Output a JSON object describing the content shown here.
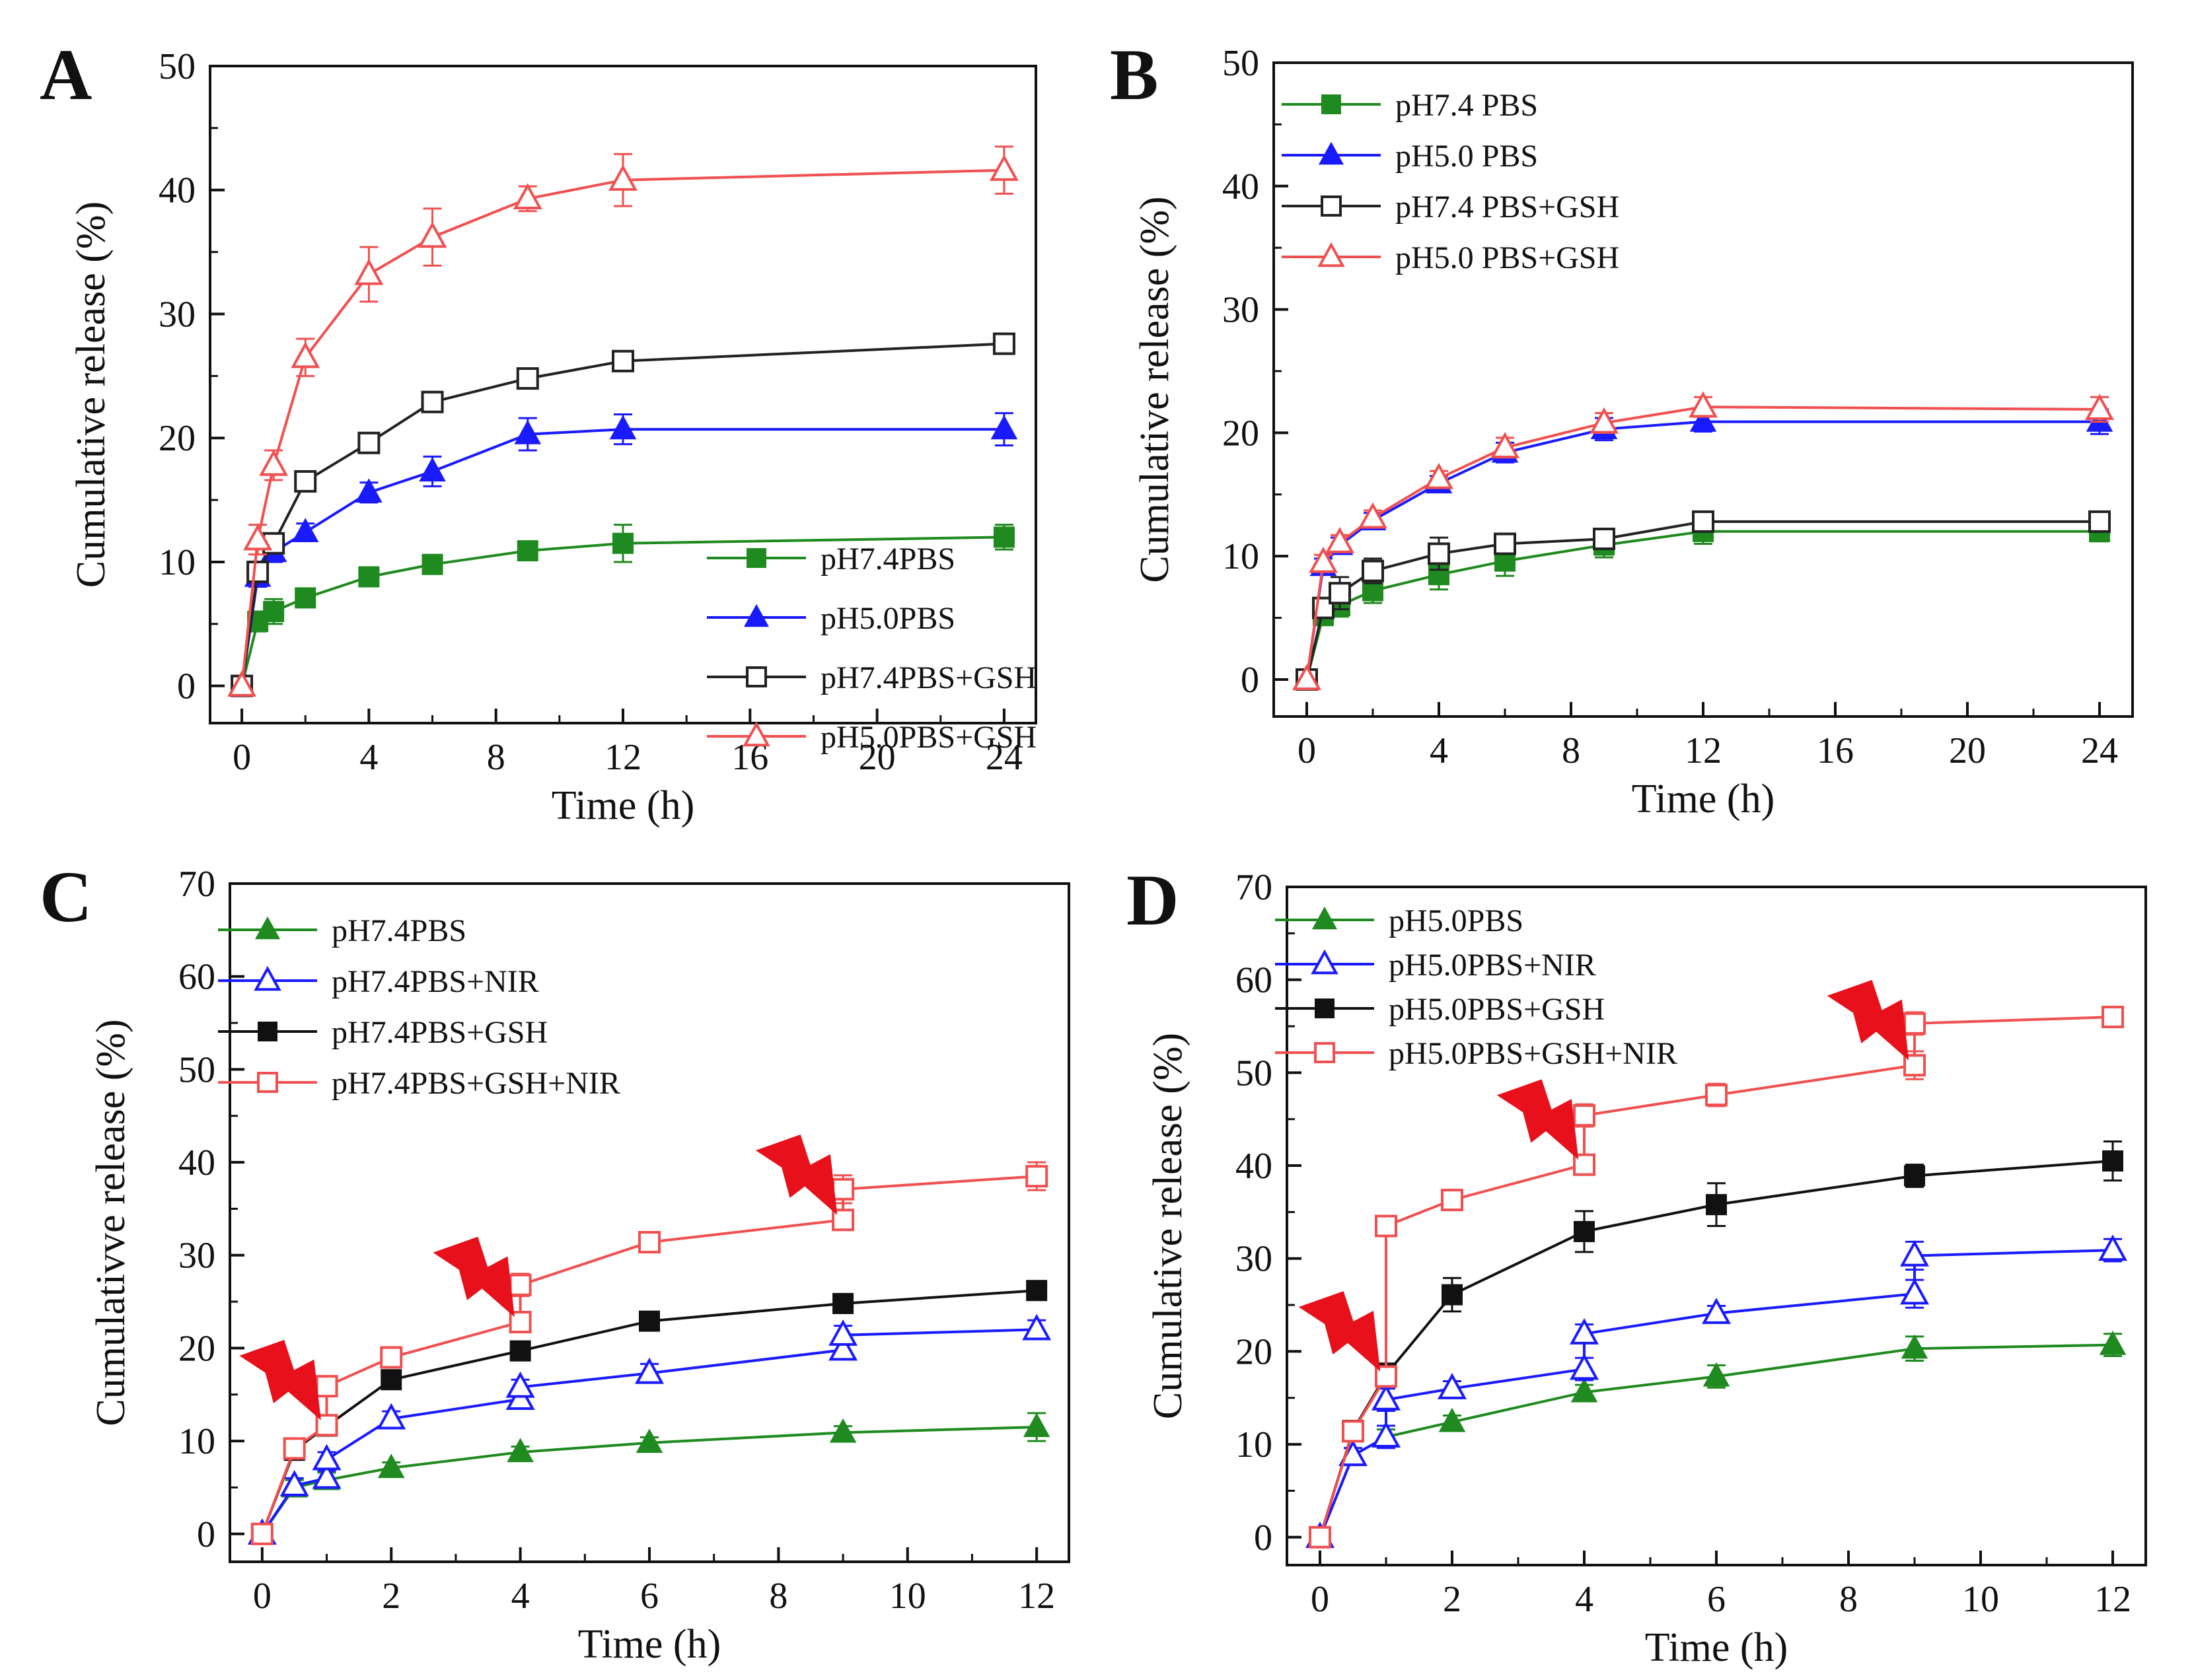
{
  "chart_data": [
    {
      "panel": "A",
      "type": "line",
      "xlabel": "Time (h)",
      "ylabel": "Cumulative release (%)",
      "xlim": [
        -1,
        25
      ],
      "ylim": [
        -3,
        50
      ],
      "xticks": [
        0,
        4,
        8,
        12,
        16,
        20,
        24
      ],
      "yticks": [
        0,
        10,
        20,
        30,
        40,
        50
      ],
      "legend_position": "bottom-right",
      "series": [
        {
          "name": "pH7.4PBS",
          "color": "#1f8a1f",
          "marker": "square",
          "filled": true,
          "x": [
            0,
            0.5,
            1,
            2,
            4,
            6,
            9,
            12,
            24
          ],
          "y": [
            0,
            5.2,
            6.0,
            7.1,
            8.8,
            9.8,
            10.9,
            11.5,
            12.0
          ],
          "err": [
            0,
            0.8,
            1.0,
            0.6,
            0.6,
            0.6,
            0.7,
            1.5,
            1.0
          ]
        },
        {
          "name": "pH5.0PBS",
          "color": "#1a1aff",
          "marker": "triangle",
          "filled": true,
          "x": [
            0,
            0.5,
            1,
            2,
            4,
            6,
            9,
            12,
            24
          ],
          "y": [
            0,
            8.8,
            10.8,
            12.4,
            15.6,
            17.3,
            20.3,
            20.7,
            20.7
          ],
          "err": [
            0,
            0.8,
            0.8,
            0.7,
            0.8,
            1.2,
            1.3,
            1.2,
            1.3
          ]
        },
        {
          "name": "pH7.4PBS+GSH",
          "color": "#222222",
          "marker": "square",
          "filled": false,
          "x": [
            0,
            0.5,
            1,
            2,
            4,
            6,
            9,
            12,
            24
          ],
          "y": [
            0,
            9.2,
            11.5,
            16.5,
            19.6,
            22.9,
            24.8,
            26.2,
            27.6
          ],
          "err": [
            0,
            0.8,
            0.8,
            0.6,
            0.6,
            0.6,
            0.6,
            0.6,
            0.8
          ]
        },
        {
          "name": "pH5.0PBS+GSH",
          "color": "#f05050",
          "marker": "triangle",
          "filled": false,
          "x": [
            0,
            0.5,
            1,
            2,
            4,
            6,
            9,
            12,
            24
          ],
          "y": [
            0,
            11.8,
            17.8,
            26.5,
            33.2,
            36.2,
            39.3,
            40.8,
            41.6
          ],
          "err": [
            0,
            1.2,
            1.2,
            1.5,
            2.2,
            2.3,
            1.0,
            2.1,
            1.9
          ]
        }
      ]
    },
    {
      "panel": "B",
      "type": "line",
      "xlabel": "Time (h)",
      "ylabel": "Cumulative release (%)",
      "xlim": [
        -1,
        25
      ],
      "ylim": [
        -3,
        50
      ],
      "xticks": [
        0,
        4,
        8,
        12,
        16,
        20,
        24
      ],
      "yticks": [
        0,
        10,
        20,
        30,
        40,
        50
      ],
      "legend_position": "top-left",
      "series": [
        {
          "name": "pH7.4 PBS",
          "color": "#1f8a1f",
          "marker": "square",
          "filled": true,
          "x": [
            0,
            0.5,
            1,
            2,
            4,
            6,
            9,
            12,
            24
          ],
          "y": [
            0,
            5.2,
            6.0,
            7.2,
            8.5,
            9.6,
            10.9,
            12.0,
            12.0
          ],
          "err": [
            0,
            0.8,
            0.9,
            1.0,
            1.2,
            1.2,
            1.0,
            1.0,
            0.8
          ]
        },
        {
          "name": "pH5.0 PBS",
          "color": "#1a1aff",
          "marker": "triangle",
          "filled": true,
          "x": [
            0,
            0.5,
            1,
            2,
            4,
            6,
            9,
            12,
            24
          ],
          "y": [
            0,
            9.2,
            10.9,
            12.9,
            15.9,
            18.4,
            20.3,
            20.9,
            20.9
          ],
          "err": [
            0,
            0.6,
            0.6,
            0.6,
            0.6,
            0.8,
            0.9,
            0.8,
            1.0
          ]
        },
        {
          "name": "pH7.4 PBS+GSH",
          "color": "#222222",
          "marker": "square",
          "filled": false,
          "x": [
            0,
            0.5,
            1,
            2,
            4,
            6,
            9,
            12,
            24
          ],
          "y": [
            0,
            5.8,
            7.0,
            8.8,
            10.2,
            11.0,
            11.4,
            12.8,
            12.8
          ],
          "err": [
            0,
            0.8,
            1.3,
            1.0,
            1.3,
            0.6,
            0.6,
            0.6,
            0.6
          ]
        },
        {
          "name": "pH5.0 PBS+GSH",
          "color": "#f05050",
          "marker": "triangle",
          "filled": false,
          "x": [
            0,
            0.5,
            1,
            2,
            4,
            6,
            9,
            12,
            24
          ],
          "y": [
            0,
            9.5,
            11.1,
            13.1,
            16.3,
            18.8,
            20.8,
            22.1,
            21.9
          ],
          "err": [
            0,
            0.6,
            0.6,
            0.6,
            0.6,
            0.8,
            0.8,
            0.8,
            1.0
          ]
        }
      ]
    },
    {
      "panel": "C",
      "type": "line",
      "xlabel": "Time (h)",
      "ylabel": "Cumulativve release (%)",
      "xlim": [
        -0.5,
        12.5
      ],
      "ylim": [
        -3,
        70
      ],
      "xticks": [
        0,
        2,
        4,
        6,
        8,
        10,
        12
      ],
      "yticks": [
        0,
        10,
        20,
        30,
        40,
        50,
        60,
        70
      ],
      "legend_position": "top-left",
      "nir_irradiation_times": [
        1,
        4,
        9
      ],
      "series": [
        {
          "name": "pH7.4PBS",
          "color": "#1f8a1f",
          "marker": "triangle",
          "filled": true,
          "x": [
            0,
            0.5,
            1,
            2,
            4,
            6,
            9,
            12
          ],
          "y": [
            0,
            5.0,
            5.8,
            7.1,
            8.8,
            9.8,
            10.9,
            11.5
          ],
          "err": [
            0,
            0.8,
            0.8,
            0.6,
            0.6,
            0.6,
            0.7,
            1.5
          ]
        },
        {
          "name": "pH7.4PBS+NIR",
          "color": "#1a1aff",
          "marker": "triangle",
          "filled": false,
          "x": [
            0,
            0.5,
            1,
            1,
            2,
            4,
            4,
            6,
            9,
            9,
            12
          ],
          "y": [
            0,
            5.2,
            6.0,
            8.0,
            12.4,
            14.5,
            15.8,
            17.3,
            19.8,
            21.4,
            22.0
          ],
          "err": [
            0,
            0.8,
            0.8,
            0.8,
            0.8,
            0.8,
            0.8,
            1.0,
            1.0,
            1.0,
            1.0
          ]
        },
        {
          "name": "pH7.4PBS+GSH",
          "color": "#111111",
          "marker": "square",
          "filled": true,
          "x": [
            0,
            0.5,
            1,
            2,
            4,
            6,
            9,
            12
          ],
          "y": [
            0,
            9.0,
            11.6,
            16.6,
            19.7,
            22.9,
            24.8,
            26.2
          ],
          "err": [
            0,
            0.5,
            0.6,
            0.6,
            0.6,
            0.6,
            0.6,
            0.6
          ]
        },
        {
          "name": "pH7.4PBS+GSH+NIR",
          "color": "#f05050",
          "marker": "square",
          "filled": false,
          "x": [
            0,
            0.5,
            1,
            1,
            2,
            4,
            4,
            6,
            9,
            9,
            12
          ],
          "y": [
            0,
            9.2,
            11.7,
            15.9,
            19.0,
            22.8,
            26.8,
            31.4,
            33.8,
            37.1,
            38.5
          ],
          "err": [
            0,
            0.5,
            0.8,
            0.8,
            0.6,
            0.8,
            1.2,
            0.6,
            1.0,
            1.5,
            1.5
          ]
        }
      ]
    },
    {
      "panel": "D",
      "type": "line",
      "xlabel": "Time (h)",
      "ylabel": "Cumulative release (%)",
      "xlim": [
        -0.5,
        12.5
      ],
      "ylim": [
        -3,
        70
      ],
      "xticks": [
        0,
        2,
        4,
        6,
        8,
        10,
        12
      ],
      "yticks": [
        0,
        10,
        20,
        30,
        40,
        50,
        60,
        70
      ],
      "legend_position": "top-left",
      "nir_irradiation_times": [
        1,
        4,
        9
      ],
      "series": [
        {
          "name": "pH5.0PBS",
          "color": "#1f8a1f",
          "marker": "triangle",
          "filled": true,
          "x": [
            0,
            0.5,
            1,
            2,
            4,
            6,
            9,
            12
          ],
          "y": [
            0,
            8.8,
            10.8,
            12.4,
            15.6,
            17.3,
            20.3,
            20.7
          ],
          "err": [
            0,
            0.8,
            0.8,
            0.7,
            0.8,
            1.2,
            1.3,
            1.2
          ]
        },
        {
          "name": "pH5.0PBS+NIR",
          "color": "#1a1aff",
          "marker": "triangle",
          "filled": false,
          "x": [
            0,
            0.5,
            1,
            1,
            2,
            4,
            4,
            6,
            9,
            9,
            12
          ],
          "y": [
            0,
            8.8,
            10.8,
            14.8,
            16.0,
            18.1,
            21.9,
            24.1,
            26.2,
            30.3,
            30.9
          ],
          "err": [
            0,
            0.8,
            1.2,
            1.2,
            0.8,
            1.2,
            1.0,
            0.8,
            1.5,
            1.5,
            1.2
          ]
        },
        {
          "name": "pH5.0PBS+GSH",
          "color": "#111111",
          "marker": "square",
          "filled": true,
          "x": [
            0,
            0.5,
            1,
            2,
            4,
            6,
            9,
            12
          ],
          "y": [
            0,
            11.5,
            17.5,
            26.1,
            32.9,
            35.8,
            38.9,
            40.5
          ],
          "err": [
            0,
            0.8,
            1.2,
            1.8,
            2.2,
            2.3,
            1.2,
            2.1
          ]
        },
        {
          "name": "pH5.0PBS+GSH+NIR",
          "color": "#f05050",
          "marker": "square",
          "filled": false,
          "x": [
            0,
            0.5,
            1,
            1,
            2,
            4,
            4,
            6,
            9,
            9,
            12
          ],
          "y": [
            0,
            11.4,
            17.3,
            33.5,
            36.3,
            40.1,
            45.4,
            47.6,
            50.8,
            55.3,
            56.0
          ],
          "err": [
            0,
            0.8,
            1.0,
            0.8,
            1.0,
            0.8,
            1.2,
            1.2,
            1.5,
            1.2,
            0.8
          ]
        }
      ]
    }
  ]
}
